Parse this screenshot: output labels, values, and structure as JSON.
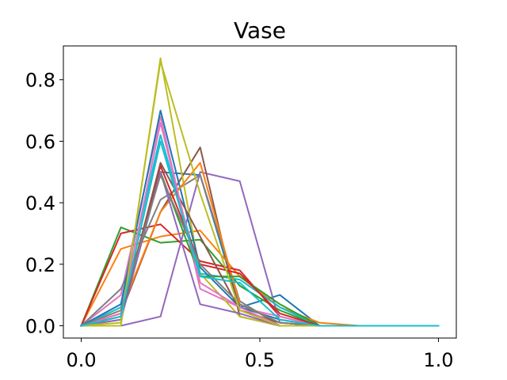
{
  "chart_data": {
    "type": "line",
    "title": "Vase",
    "xlabel": "",
    "ylabel": "",
    "xlim": [
      -0.05,
      1.05
    ],
    "ylim": [
      -0.04,
      0.91
    ],
    "grid": false,
    "x": [
      0.0,
      0.111,
      0.222,
      0.333,
      0.444,
      0.556,
      0.667,
      0.778,
      0.889,
      1.0
    ],
    "xticks": [
      0.0,
      0.5,
      1.0
    ],
    "xtick_labels": [
      "0.0",
      "0.5",
      "1.0"
    ],
    "yticks": [
      0.0,
      0.2,
      0.4,
      0.6,
      0.8
    ],
    "ytick_labels": [
      "0.0",
      "0.2",
      "0.4",
      "0.6",
      "0.8"
    ],
    "series": [
      {
        "color": "#1f77b4",
        "values": [
          0.0,
          0.03,
          0.5,
          0.49,
          0.06,
          0.1,
          0.0,
          0.0,
          0.0,
          0.0
        ]
      },
      {
        "color": "#ff7f0e",
        "values": [
          0.0,
          0.25,
          0.29,
          0.31,
          0.16,
          0.06,
          0.01,
          0.0,
          0.0,
          0.0
        ]
      },
      {
        "color": "#2ca02c",
        "values": [
          0.0,
          0.32,
          0.27,
          0.28,
          0.13,
          0.05,
          0.0,
          0.0,
          0.0,
          0.0
        ]
      },
      {
        "color": "#d62728",
        "values": [
          0.0,
          0.3,
          0.33,
          0.21,
          0.18,
          0.03,
          0.0,
          0.0,
          0.0,
          0.0
        ]
      },
      {
        "color": "#9467bd",
        "values": [
          0.0,
          0.0,
          0.03,
          0.5,
          0.47,
          0.01,
          0.0,
          0.0,
          0.0,
          0.0
        ]
      },
      {
        "color": "#8c564b",
        "values": [
          0.0,
          0.04,
          0.37,
          0.58,
          0.03,
          0.0,
          0.0,
          0.0,
          0.0,
          0.0
        ]
      },
      {
        "color": "#e377c2",
        "values": [
          0.0,
          0.1,
          0.68,
          0.12,
          0.06,
          0.03,
          0.0,
          0.0,
          0.0,
          0.0
        ]
      },
      {
        "color": "#7f7f7f",
        "values": [
          0.0,
          0.12,
          0.41,
          0.49,
          0.08,
          0.0,
          0.0,
          0.0,
          0.0,
          0.0
        ]
      },
      {
        "color": "#bcbd22",
        "values": [
          0.0,
          0.0,
          0.87,
          0.17,
          0.03,
          0.0,
          0.0,
          0.0,
          0.0,
          0.0
        ]
      },
      {
        "color": "#17becf",
        "values": [
          0.0,
          0.06,
          0.62,
          0.17,
          0.15,
          0.06,
          0.0,
          0.0,
          0.0,
          0.0
        ]
      },
      {
        "color": "#1f77b4",
        "values": [
          0.0,
          0.07,
          0.7,
          0.19,
          0.06,
          0.02,
          0.0,
          0.0,
          0.0,
          0.0
        ]
      },
      {
        "color": "#ff7f0e",
        "values": [
          0.0,
          0.05,
          0.37,
          0.53,
          0.07,
          0.01,
          0.0,
          0.0,
          0.0,
          0.0
        ]
      },
      {
        "color": "#2ca02c",
        "values": [
          0.0,
          0.02,
          0.5,
          0.16,
          0.16,
          0.07,
          0.0,
          0.0,
          0.0,
          0.0
        ]
      },
      {
        "color": "#d62728",
        "values": [
          0.0,
          0.04,
          0.52,
          0.2,
          0.17,
          0.04,
          0.0,
          0.0,
          0.0,
          0.0
        ]
      },
      {
        "color": "#9467bd",
        "values": [
          0.0,
          0.02,
          0.5,
          0.07,
          0.04,
          0.0,
          0.0,
          0.0,
          0.0,
          0.0
        ]
      },
      {
        "color": "#8c564b",
        "values": [
          0.0,
          0.03,
          0.53,
          0.29,
          0.05,
          0.01,
          0.0,
          0.0,
          0.0,
          0.0
        ]
      },
      {
        "color": "#e377c2",
        "values": [
          0.0,
          0.04,
          0.66,
          0.14,
          0.06,
          0.0,
          0.0,
          0.0,
          0.0,
          0.0
        ]
      },
      {
        "color": "#7f7f7f",
        "values": [
          0.0,
          0.05,
          0.49,
          0.2,
          0.07,
          0.01,
          0.0,
          0.0,
          0.0,
          0.0
        ]
      },
      {
        "color": "#bcbd22",
        "values": [
          0.0,
          0.01,
          0.86,
          0.43,
          0.05,
          0.0,
          0.0,
          0.0,
          0.0,
          0.0
        ]
      },
      {
        "color": "#17becf",
        "values": [
          0.0,
          0.03,
          0.6,
          0.16,
          0.14,
          0.02,
          0.0,
          0.0,
          0.0,
          0.0
        ]
      }
    ]
  }
}
